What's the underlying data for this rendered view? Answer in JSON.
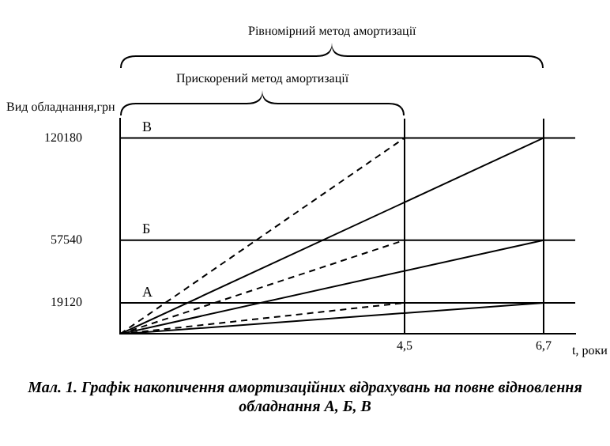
{
  "chart_data": {
    "type": "line",
    "title": "Мал. 1. Графік накопичення амортизаційних відрахувань на повне відновлення обладнання А, Б, В",
    "xlabel": "t, роки",
    "ylabel": "Вид обладнання,грн",
    "annotations": [
      "Рівномірний метод амортизації",
      "Прискорений метод амортизації"
    ],
    "series": [
      {
        "color": "#000000",
        "line_style": "dashed",
        "x": [
          0,
          4.5
        ],
        "values": [
          0,
          120180
        ]
      },
      {
        "color": "#000000",
        "line_style": "dashed",
        "x": [
          0,
          4.5
        ],
        "values": [
          0,
          57540
        ]
      },
      {
        "color": "#000000",
        "line_style": "dashed",
        "x": [
          0,
          4.5
        ],
        "values": [
          0,
          19120
        ]
      },
      {
        "color": "#000000",
        "line_style": "solid",
        "x": [
          0,
          6.7
        ],
        "values": [
          0,
          120180
        ]
      },
      {
        "color": "#000000",
        "line_style": "solid",
        "x": [
          0,
          6.7
        ],
        "values": [
          0,
          57540
        ]
      },
      {
        "color": "#000000",
        "line_style": "solid",
        "x": [
          0,
          6.7
        ],
        "values": [
          0,
          19120
        ]
      }
    ],
    "ref_lines": [
      {
        "axis": "y",
        "value": 120180,
        "label": "В",
        "color": "#000000"
      },
      {
        "axis": "y",
        "value": 57540,
        "label": "Б",
        "color": "#000000"
      },
      {
        "axis": "y",
        "value": 19120,
        "label": "А",
        "color": "#000000"
      },
      {
        "axis": "x",
        "value": 6.7,
        "color": "#000000"
      },
      {
        "axis": "x",
        "value": 4.5,
        "color": "#000000"
      }
    ],
    "xlim": [
      0,
      7.2
    ],
    "xticks": [
      {
        "value": 4.5,
        "label": "4,5"
      },
      {
        "value": 6.7,
        "label": "6,7"
      }
    ],
    "ylim": [
      0,
      132000
    ],
    "yticks": [
      19120,
      57540,
      120180
    ],
    "grid": false,
    "legend": false,
    "marker": "none"
  }
}
